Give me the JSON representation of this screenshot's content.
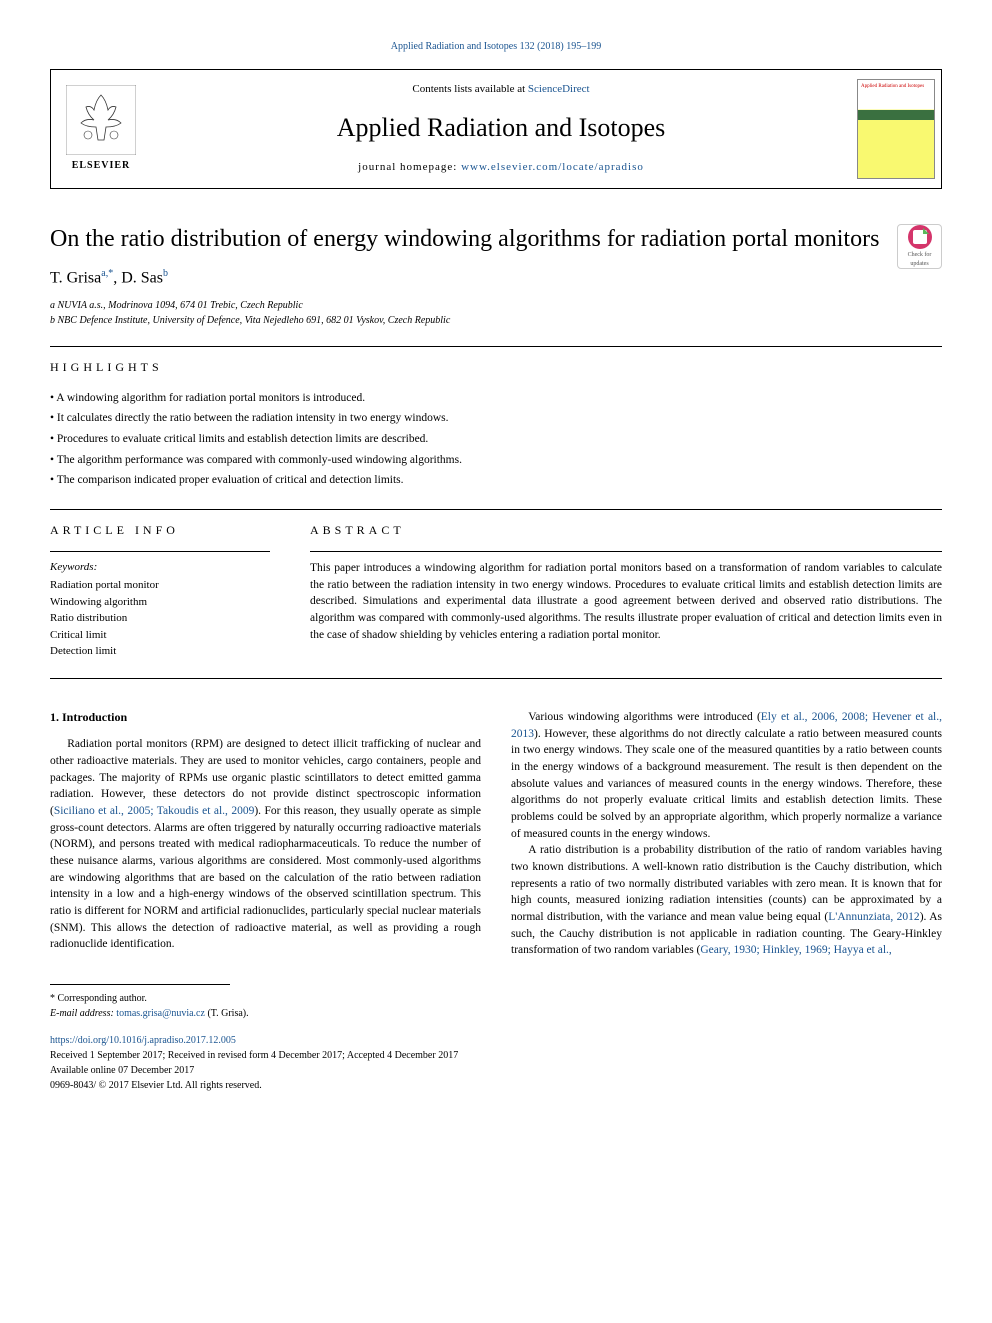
{
  "header": {
    "citation": "Applied Radiation and Isotopes 132 (2018) 195–199",
    "contents_prefix": "Contents lists available at ",
    "contents_link": "ScienceDirect",
    "journal_name": "Applied Radiation and Isotopes",
    "homepage_prefix": "journal homepage: ",
    "homepage_link": "www.elsevier.com/locate/apradiso",
    "elsevier_label": "ELSEVIER",
    "cover_title": "Applied Radiation and Isotopes",
    "check_updates": "Check for updates"
  },
  "article": {
    "title": "On the ratio distribution of energy windowing algorithms for radiation portal monitors",
    "authors_html": "T. Grisa<sup>a,*</sup>, D. Sas<sup>b</sup>",
    "affiliations": [
      "a NUVIA a.s., Modrinova 1094, 674 01 Trebic, Czech Republic",
      "b NBC Defence Institute, University of Defence, Vita Nejedleho 691, 682 01 Vyskov, Czech Republic"
    ]
  },
  "highlights": {
    "heading": "HIGHLIGHTS",
    "items": [
      "A windowing algorithm for radiation portal monitors is introduced.",
      "It calculates directly the ratio between the radiation intensity in two energy windows.",
      "Procedures to evaluate critical limits and establish detection limits are described.",
      "The algorithm performance was compared with commonly-used windowing algorithms.",
      "The comparison indicated proper evaluation of critical and detection limits."
    ]
  },
  "article_info": {
    "heading": "ARTICLE INFO",
    "keywords_label": "Keywords:",
    "keywords": [
      "Radiation portal monitor",
      "Windowing algorithm",
      "Ratio distribution",
      "Critical limit",
      "Detection limit"
    ]
  },
  "abstract": {
    "heading": "ABSTRACT",
    "text": "This paper introduces a windowing algorithm for radiation portal monitors based on a transformation of random variables to calculate the ratio between the radiation intensity in two energy windows. Procedures to evaluate critical limits and establish detection limits are described. Simulations and experimental data illustrate a good agreement between derived and observed ratio distributions. The algorithm was compared with commonly-used algorithms. The results illustrate proper evaluation of critical and detection limits even in the case of shadow shielding by vehicles entering a radiation portal monitor."
  },
  "body": {
    "intro_heading": "1. Introduction",
    "para1_pre": "Radiation portal monitors (RPM) are designed to detect illicit trafficking of nuclear and other radioactive materials. They are used to monitor vehicles, cargo containers, people and packages. The majority of RPMs use organic plastic scintillators to detect emitted gamma radiation. However, these detectors do not provide distinct spectroscopic information (",
    "para1_ref1": "Siciliano et al., 2005; Takoudis et al., 2009",
    "para1_post": "). For this reason, they usually operate as simple gross-count detectors. Alarms are often triggered by naturally occurring radioactive materials (NORM), and persons treated with medical radiopharmaceuticals. To reduce the number of these nuisance alarms, various algorithms are considered. Most commonly-used algorithms are windowing algorithms that are based on the calculation of the ratio between radiation intensity in a low and a high-energy windows of the observed scintillation spectrum. This ratio is different for NORM and artificial radionuclides, particularly special nuclear materials (SNM). This allows the detection of radioactive material, as well as providing a rough radionuclide identification.",
    "para2_pre": "Various windowing algorithms were introduced (",
    "para2_ref1": "Ely et al., 2006, 2008; Hevener et al., 2013",
    "para2_post": "). However, these algorithms do not directly calculate a ratio between measured counts in two energy windows. They scale one of the measured quantities by a ratio between counts in the energy windows of a background measurement. The result is then dependent on the absolute values and variances of measured counts in the energy windows. Therefore, these algorithms do not properly evaluate critical limits and establish detection limits. These problems could be solved by an appropriate algorithm, which properly normalize a variance of measured counts in the energy windows.",
    "para3_pre": "A ratio distribution is a probability distribution of the ratio of random variables having two known distributions. A well-known ratio distribution is the Cauchy distribution, which represents a ratio of two normally distributed variables with zero mean. It is known that for high counts, measured ionizing radiation intensities (counts) can be approximated by a normal distribution, with the variance and mean value being equal (",
    "para3_ref1": "L'Annunziata, 2012",
    "para3_mid": "). As such, the Cauchy distribution is not applicable in radiation counting. The Geary-Hinkley transformation of two random variables (",
    "para3_ref2": "Geary, 1930; Hinkley, 1969; Hayya et al.,"
  },
  "footer": {
    "corresponding": "* Corresponding author.",
    "email_label": "E-mail address: ",
    "email": "tomas.grisa@nuvia.cz",
    "email_suffix": " (T. Grisa).",
    "doi": "https://doi.org/10.1016/j.apradiso.2017.12.005",
    "received": "Received 1 September 2017; Received in revised form 4 December 2017; Accepted 4 December 2017",
    "available": "Available online 07 December 2017",
    "copyright": "0969-8043/ © 2017 Elsevier Ltd. All rights reserved."
  },
  "colors": {
    "link": "#1a5490",
    "accent_pink": "#d4356b",
    "cover_yellow": "#f9f970",
    "cover_green": "#3a7040"
  }
}
